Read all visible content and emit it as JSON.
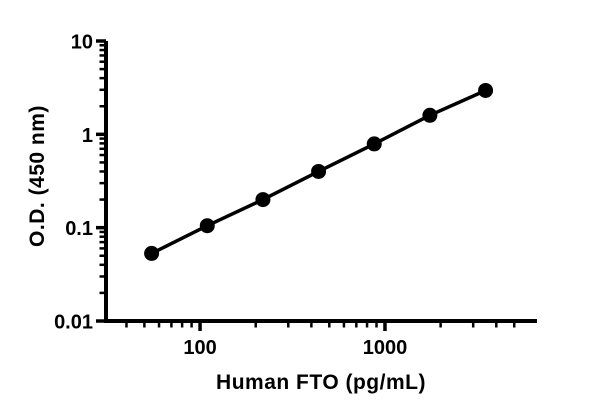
{
  "figure": {
    "background": "#ffffff",
    "plot_style": "prism-like black on white, no grid, no legend, no title"
  },
  "chart_data": {
    "type": "line",
    "title": "",
    "xlabel": "Human FTO (pg/mL)",
    "ylabel": "O.D. (450 nm)",
    "x_scale": "log",
    "y_scale": "log",
    "x_domain": [
      31,
      6640
    ],
    "y_domain": [
      0.01,
      10
    ],
    "grid": false,
    "legend": null,
    "axis_color": "#000000",
    "text_color": "#000000",
    "background": "#ffffff",
    "series": [
      {
        "name": "standard-curve",
        "marker": "filled-circle",
        "color": "#000000",
        "points": [
          {
            "x": 54.7,
            "y": 0.053
          },
          {
            "x": 109.4,
            "y": 0.105
          },
          {
            "x": 218.8,
            "y": 0.2
          },
          {
            "x": 437.5,
            "y": 0.4
          },
          {
            "x": 875,
            "y": 0.79
          },
          {
            "x": 1750,
            "y": 1.6
          },
          {
            "x": 3500,
            "y": 2.95
          }
        ]
      }
    ],
    "x_axis": {
      "major_ticks": [
        {
          "value": 100,
          "label": "100"
        },
        {
          "value": 1000,
          "label": "1000"
        }
      ],
      "minor_ticks": [
        40,
        50,
        60,
        70,
        80,
        90,
        200,
        300,
        400,
        500,
        600,
        700,
        800,
        900,
        2000,
        3000,
        4000,
        5000
      ]
    },
    "y_axis": {
      "major_ticks": [
        {
          "value": 10,
          "label": "10"
        },
        {
          "value": 1,
          "label": "1"
        },
        {
          "value": 0.1,
          "label": "0.1"
        },
        {
          "value": 0.01,
          "label": "0.01"
        }
      ],
      "minor_ticks": [
        0.02,
        0.03,
        0.04,
        0.05,
        0.06,
        0.07,
        0.08,
        0.09,
        0.2,
        0.3,
        0.4,
        0.5,
        0.6,
        0.7,
        0.8,
        0.9,
        2,
        3,
        4,
        5,
        6,
        7,
        8,
        9
      ]
    }
  }
}
